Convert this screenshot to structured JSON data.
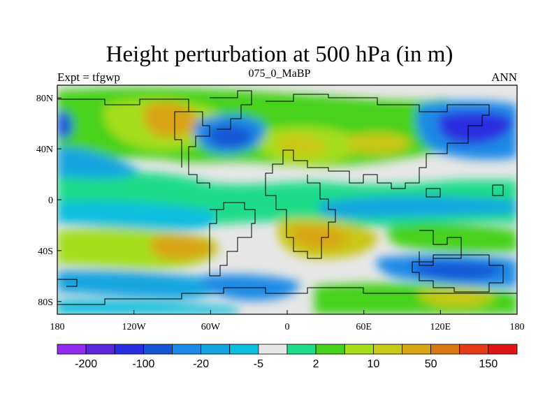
{
  "title": "Height perturbation at 500 hPa (in m)",
  "left_label": "Expt = tfgwp",
  "center_label": "075_0_MaBP",
  "right_label": "ANN",
  "map": {
    "lat_ticks": [
      "80N",
      "40N",
      "0",
      "40S",
      "80S"
    ],
    "lat_values": [
      80,
      40,
      0,
      -40,
      -80
    ],
    "lon_ticks": [
      "180",
      "120W",
      "60W",
      "0",
      "60E",
      "120E",
      "180"
    ],
    "lon_values": [
      -180,
      -120,
      -60,
      0,
      60,
      120,
      180
    ],
    "lon_range": [
      -180,
      180
    ],
    "lat_range": [
      -90,
      90
    ]
  },
  "colorbar": {
    "colors": [
      "#8f2cf0",
      "#5a28d8",
      "#2a2ee0",
      "#1656d6",
      "#1c8ae6",
      "#14a4e0",
      "#0bbfdd",
      "#e6e6e6",
      "#1edc8a",
      "#46d21c",
      "#a6de1a",
      "#c8c816",
      "#d8a416",
      "#d87816",
      "#e63c16",
      "#e01616"
    ],
    "labels": [
      "-200",
      "-100",
      "-20",
      "-5",
      "2",
      "10",
      "50",
      "150"
    ],
    "label_positions": [
      1,
      3,
      5,
      7,
      9,
      11,
      13,
      15
    ]
  }
}
